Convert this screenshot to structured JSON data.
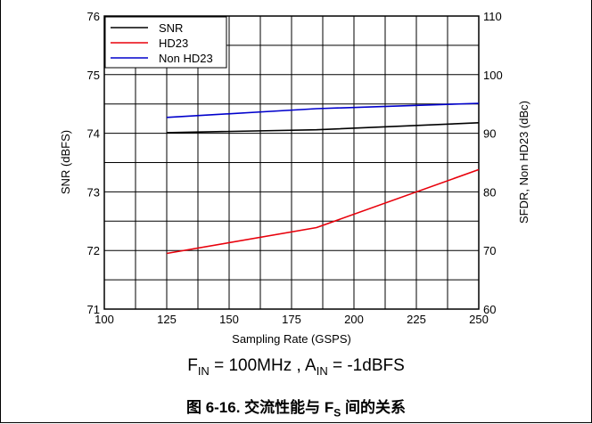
{
  "chart_data": {
    "type": "line",
    "x": [
      125,
      185,
      250
    ],
    "series": [
      {
        "name": "SNR",
        "axis": "left",
        "color": "#000000",
        "values": [
          74.01,
          74.06,
          74.18
        ]
      },
      {
        "name": "HD23",
        "axis": "right",
        "color": "#e8000b",
        "values": [
          69.5,
          73.9,
          83.8
        ]
      },
      {
        "name": "Non HD23",
        "axis": "right",
        "color": "#0000cc",
        "values": [
          92.7,
          94.2,
          95.1
        ]
      }
    ],
    "xlabel": "Sampling Rate (GSPS)",
    "ylabel_left": "SNR (dBFS)",
    "ylabel_right": "SFDR, Non HD23 (dBc)",
    "xlim": [
      100,
      250
    ],
    "ylim_left": [
      71,
      76
    ],
    "ylim_right": [
      60,
      110
    ],
    "x_ticks": [
      100,
      125,
      150,
      175,
      200,
      225,
      250
    ],
    "y_left_ticks": [
      71,
      72,
      73,
      74,
      75,
      76
    ],
    "y_right_ticks": [
      60,
      70,
      80,
      90,
      100,
      110
    ],
    "grid": true,
    "legend_position": "top-left"
  },
  "condition": {
    "f_main": "F",
    "f_sub": "IN",
    "f_value": " = 100MHz",
    "separator": " , ",
    "a_main": "A",
    "a_sub": "IN",
    "a_value": " = -1dBFS"
  },
  "caption": {
    "prefix": "图 6-16. 交流性能与 F",
    "sub": "S",
    "suffix": " 间的关系"
  }
}
